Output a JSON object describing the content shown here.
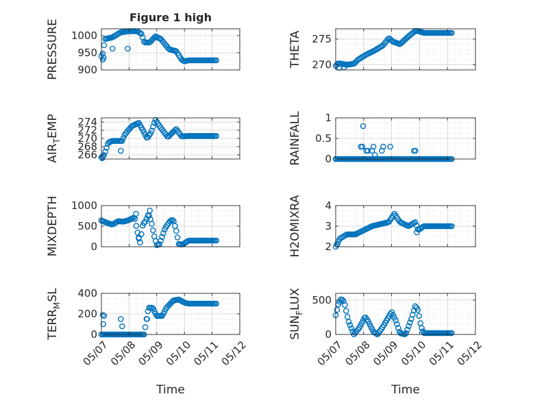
{
  "figure": {
    "title": "Figure 1 high",
    "colors": {
      "marker": "#0072BD",
      "axis": "#262626",
      "grid": "#d9d9d9",
      "background": "#ffffff"
    }
  },
  "chart_data": [
    {
      "id": "pressure",
      "type": "scatter",
      "title": "Figure 1 high",
      "ylabel": "PRESSURE",
      "xlabel": "",
      "xlim": [
        "05/07",
        "05/12"
      ],
      "ylim": [
        900,
        1020
      ],
      "yticks": [
        900,
        950,
        1000
      ],
      "grid": true,
      "x_start": "05/07",
      "x_end": "05/11",
      "knots": [
        [
          0,
          940
        ],
        [
          0.06,
          950
        ],
        [
          0.12,
          990
        ],
        [
          0.4,
          995
        ],
        [
          0.7,
          1010
        ],
        [
          1.0,
          1013
        ],
        [
          1.3,
          1013
        ],
        [
          1.45,
          1005
        ],
        [
          1.55,
          980
        ],
        [
          1.75,
          980
        ],
        [
          1.95,
          998
        ],
        [
          2.15,
          990
        ],
        [
          2.45,
          960
        ],
        [
          2.7,
          955
        ],
        [
          2.9,
          930
        ],
        [
          3.0,
          925
        ],
        [
          3.15,
          928
        ]
      ],
      "outliers": [
        [
          0.05,
          930
        ],
        [
          0.08,
          936
        ],
        [
          0.4,
          962
        ],
        [
          0.95,
          962
        ]
      ],
      "n_points": 90
    },
    {
      "id": "theta",
      "type": "scatter",
      "ylabel": "THETA",
      "xlabel": "",
      "xlim": [
        "05/07",
        "05/12"
      ],
      "ylim": [
        269,
        277
      ],
      "yticks": [
        270,
        275
      ],
      "grid": true,
      "x_start": "05/07",
      "x_end": "05/11",
      "knots": [
        [
          0,
          269.8
        ],
        [
          0.1,
          270.3
        ],
        [
          0.4,
          270.0
        ],
        [
          0.65,
          270.2
        ],
        [
          0.8,
          271.0
        ],
        [
          1.1,
          272.0
        ],
        [
          1.4,
          272.8
        ],
        [
          1.7,
          273.8
        ],
        [
          1.9,
          275.2
        ],
        [
          2.05,
          274.5
        ],
        [
          2.3,
          274.0
        ],
        [
          2.6,
          275.5
        ],
        [
          2.85,
          276.6
        ],
        [
          3.0,
          276.5
        ],
        [
          3.15,
          276.2
        ]
      ],
      "outliers": [
        [
          0.12,
          269.4
        ],
        [
          0.3,
          269.5
        ]
      ],
      "n_points": 90
    },
    {
      "id": "air-temp",
      "type": "scatter",
      "ylabel": "AIR_TEMP",
      "xlabel": "",
      "xlim": [
        "05/07",
        "05/12"
      ],
      "ylim": [
        265,
        275
      ],
      "yticks": [
        266,
        268,
        270,
        272,
        274
      ],
      "grid": true,
      "x_start": "05/07",
      "x_end": "05/11",
      "knots": [
        [
          0,
          265.4
        ],
        [
          0.1,
          266.0
        ],
        [
          0.25,
          269.0
        ],
        [
          0.4,
          269.4
        ],
        [
          0.6,
          269.4
        ],
        [
          0.75,
          269.4
        ],
        [
          0.85,
          271.0
        ],
        [
          1.1,
          273.0
        ],
        [
          1.35,
          273.8
        ],
        [
          1.5,
          272.0
        ],
        [
          1.65,
          270.0
        ],
        [
          1.8,
          271.5
        ],
        [
          1.95,
          274.6
        ],
        [
          2.1,
          273.0
        ],
        [
          2.4,
          270.3
        ],
        [
          2.7,
          272.3
        ],
        [
          2.9,
          270.5
        ],
        [
          3.15,
          270.6
        ]
      ],
      "outliers": [
        [
          0.7,
          267.0
        ],
        [
          0.03,
          265.2
        ]
      ],
      "n_points": 90
    },
    {
      "id": "rainfall",
      "type": "scatter",
      "ylabel": "RAINFALL",
      "xlabel": "",
      "xlim": [
        "05/07",
        "05/12"
      ],
      "ylim": [
        0,
        1
      ],
      "yticks": [
        0,
        0.5,
        1
      ],
      "grid": true,
      "x_start": "05/07",
      "x_end": "05/11",
      "knots": [
        [
          0,
          0
        ],
        [
          3.15,
          0
        ]
      ],
      "outliers": [
        [
          0.9,
          0.3
        ],
        [
          0.95,
          0.3
        ],
        [
          0.98,
          0.8
        ],
        [
          1.1,
          0.2
        ],
        [
          1.15,
          0.2
        ],
        [
          1.35,
          0.3
        ],
        [
          1.3,
          0.2
        ],
        [
          1.4,
          0.1
        ],
        [
          1.7,
          0.3
        ],
        [
          1.65,
          0.2
        ],
        [
          1.95,
          0.3
        ],
        [
          2.8,
          0.2
        ],
        [
          2.85,
          0.2
        ]
      ],
      "n_points": 90
    },
    {
      "id": "mixdepth",
      "type": "scatter",
      "ylabel": "MIXDEPTH",
      "xlabel": "",
      "xlim": [
        "05/07",
        "05/12"
      ],
      "ylim": [
        0,
        1000
      ],
      "yticks": [
        0,
        500,
        1000
      ],
      "grid": true,
      "x_start": "05/07",
      "x_end": "05/11",
      "knots": [
        [
          0,
          640
        ],
        [
          0.2,
          580
        ],
        [
          0.4,
          540
        ],
        [
          0.6,
          620
        ],
        [
          0.8,
          610
        ],
        [
          1.0,
          650
        ],
        [
          1.2,
          720
        ],
        [
          1.3,
          360
        ],
        [
          1.4,
          100
        ],
        [
          1.5,
          550
        ],
        [
          1.6,
          620
        ],
        [
          1.7,
          800
        ],
        [
          1.8,
          620
        ],
        [
          1.9,
          280
        ],
        [
          2.0,
          40
        ],
        [
          2.1,
          60
        ],
        [
          2.3,
          450
        ],
        [
          2.5,
          640
        ],
        [
          2.6,
          650
        ],
        [
          2.7,
          400
        ],
        [
          2.8,
          60
        ],
        [
          2.95,
          60
        ],
        [
          3.15,
          150
        ]
      ],
      "outliers": [
        [
          1.35,
          200
        ],
        [
          1.25,
          800
        ],
        [
          1.75,
          880
        ]
      ],
      "n_points": 90
    },
    {
      "id": "h2omixra",
      "type": "scatter",
      "ylabel": "H2OMIXRA",
      "xlabel": "",
      "xlim": [
        "05/07",
        "05/12"
      ],
      "ylim": [
        2,
        4
      ],
      "yticks": [
        2,
        3,
        4
      ],
      "grid": true,
      "x_start": "05/07",
      "x_end": "05/11",
      "knots": [
        [
          0,
          2.0
        ],
        [
          0.15,
          2.4
        ],
        [
          0.4,
          2.6
        ],
        [
          0.7,
          2.6
        ],
        [
          1.0,
          2.8
        ],
        [
          1.3,
          3.0
        ],
        [
          1.6,
          3.1
        ],
        [
          1.9,
          3.2
        ],
        [
          2.1,
          3.6
        ],
        [
          2.3,
          3.2
        ],
        [
          2.6,
          3.0
        ],
        [
          2.85,
          3.2
        ],
        [
          2.95,
          2.8
        ],
        [
          3.15,
          3.0
        ]
      ],
      "outliers": [
        [
          0.05,
          2.1
        ],
        [
          2.9,
          2.7
        ]
      ],
      "n_points": 90
    },
    {
      "id": "terr-msl",
      "type": "scatter",
      "ylabel": "TERR_MSL",
      "xlabel": "Time",
      "xlim": [
        "05/07",
        "05/12"
      ],
      "ylim": [
        0,
        400
      ],
      "yticks": [
        0,
        200,
        400
      ],
      "xticks": [
        "05/07",
        "05/08",
        "05/09",
        "05/10",
        "05/11",
        "05/12"
      ],
      "grid": true,
      "x_start": "05/07",
      "x_end": "05/11",
      "knots": [
        [
          0,
          0
        ],
        [
          1.55,
          0
        ],
        [
          1.6,
          100
        ],
        [
          1.7,
          260
        ],
        [
          1.85,
          260
        ],
        [
          2.0,
          180
        ],
        [
          2.2,
          180
        ],
        [
          2.35,
          260
        ],
        [
          2.6,
          330
        ],
        [
          2.8,
          340
        ],
        [
          3.0,
          310
        ],
        [
          3.15,
          300
        ]
      ],
      "outliers": [
        [
          0.05,
          190
        ],
        [
          0.1,
          180
        ],
        [
          0.07,
          100
        ],
        [
          0.7,
          150
        ],
        [
          0.75,
          80
        ],
        [
          1.65,
          150
        ]
      ],
      "n_points": 90
    },
    {
      "id": "sun-flux",
      "type": "scatter",
      "ylabel": "SUN_FLUX",
      "xlabel": "Time",
      "xlim": [
        "05/07",
        "05/12"
      ],
      "ylim": [
        0,
        600
      ],
      "yticks": [
        0,
        500
      ],
      "xticks": [
        "05/07",
        "05/08",
        "05/09",
        "05/10",
        "05/11",
        "05/12"
      ],
      "grid": true,
      "x_start": "05/07",
      "x_end": "05/11",
      "knots": [
        [
          0,
          280
        ],
        [
          0.1,
          450
        ],
        [
          0.2,
          520
        ],
        [
          0.3,
          480
        ],
        [
          0.45,
          200
        ],
        [
          0.65,
          0
        ],
        [
          0.85,
          100
        ],
        [
          1.05,
          260
        ],
        [
          1.15,
          200
        ],
        [
          1.35,
          40
        ],
        [
          1.5,
          0
        ],
        [
          1.7,
          120
        ],
        [
          2.0,
          330
        ],
        [
          2.15,
          200
        ],
        [
          2.3,
          20
        ],
        [
          2.5,
          0
        ],
        [
          2.7,
          220
        ],
        [
          2.85,
          420
        ],
        [
          2.95,
          350
        ],
        [
          3.05,
          120
        ],
        [
          3.15,
          20
        ]
      ],
      "outliers": [],
      "n_points": 90
    }
  ]
}
